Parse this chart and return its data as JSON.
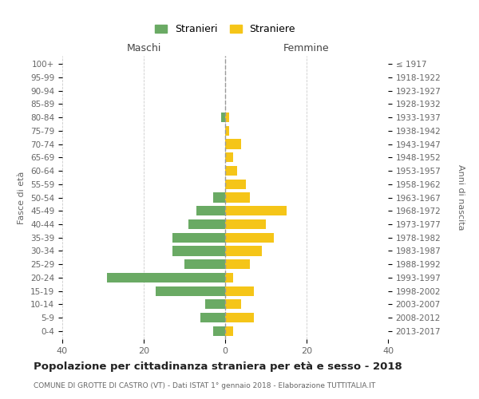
{
  "age_groups": [
    "0-4",
    "5-9",
    "10-14",
    "15-19",
    "20-24",
    "25-29",
    "30-34",
    "35-39",
    "40-44",
    "45-49",
    "50-54",
    "55-59",
    "60-64",
    "65-69",
    "70-74",
    "75-79",
    "80-84",
    "85-89",
    "90-94",
    "95-99",
    "100+"
  ],
  "birth_years": [
    "2013-2017",
    "2008-2012",
    "2003-2007",
    "1998-2002",
    "1993-1997",
    "1988-1992",
    "1983-1987",
    "1978-1982",
    "1973-1977",
    "1968-1972",
    "1963-1967",
    "1958-1962",
    "1953-1957",
    "1948-1952",
    "1943-1947",
    "1938-1942",
    "1933-1937",
    "1928-1932",
    "1923-1927",
    "1918-1922",
    "≤ 1917"
  ],
  "males": [
    3,
    6,
    5,
    17,
    29,
    10,
    13,
    13,
    9,
    7,
    3,
    0,
    0,
    0,
    0,
    0,
    1,
    0,
    0,
    0,
    0
  ],
  "females": [
    2,
    7,
    4,
    7,
    2,
    6,
    9,
    12,
    10,
    15,
    6,
    5,
    3,
    2,
    4,
    1,
    1,
    0,
    0,
    0,
    0
  ],
  "male_color": "#6aaa64",
  "female_color": "#f5c518",
  "background_color": "#ffffff",
  "grid_color": "#cccccc",
  "title": "Popolazione per cittadinanza straniera per età e sesso - 2018",
  "subtitle": "COMUNE DI GROTTE DI CASTRO (VT) - Dati ISTAT 1° gennaio 2018 - Elaborazione TUTTITALIA.IT",
  "ylabel_left": "Fasce di età",
  "ylabel_right": "Anni di nascita",
  "maschi_label": "Maschi",
  "femmine_label": "Femmine",
  "legend_stranieri": "Stranieri",
  "legend_straniere": "Straniere",
  "xlim": 40,
  "bar_height": 0.72
}
